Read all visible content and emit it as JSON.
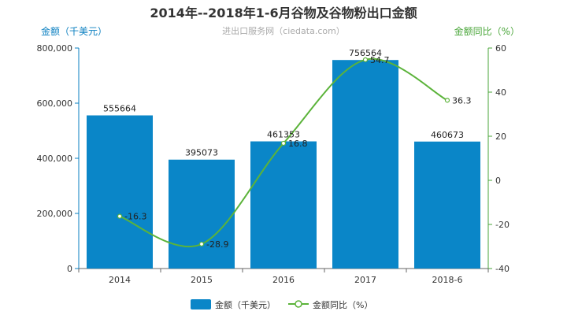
{
  "chart_data": {
    "type": "bar",
    "title": "2014年--2018年1-6月谷物及谷物粉出口金额",
    "subtitle": "进出口服务网（ciedata.com）",
    "categories": [
      "2014",
      "2015",
      "2016",
      "2017",
      "2018-6"
    ],
    "y_left": {
      "label": "金额（千美元）",
      "range": [
        0,
        800000
      ],
      "ticks": [
        "0",
        "200,000",
        "400,000",
        "600,000",
        "800,000"
      ],
      "tick_values": [
        0,
        200000,
        400000,
        600000,
        800000
      ]
    },
    "y_right": {
      "label": "金额同比（%）",
      "range": [
        -40,
        60
      ],
      "ticks": [
        "-40",
        "-20",
        "0",
        "20",
        "40",
        "60"
      ],
      "tick_values": [
        -40,
        -20,
        0,
        20,
        40,
        60
      ]
    },
    "series": [
      {
        "name": "金额（千美元）",
        "type": "bar",
        "axis": "left",
        "color": "#0a86c8",
        "values": [
          555664,
          395073,
          461353,
          756564,
          460673
        ]
      },
      {
        "name": "金额同比（%）",
        "type": "line",
        "axis": "right",
        "color": "#5bb33a",
        "values": [
          -16.3,
          -28.9,
          16.8,
          54.7,
          36.3
        ]
      }
    ],
    "legend_position": "bottom-center",
    "grid": false
  }
}
